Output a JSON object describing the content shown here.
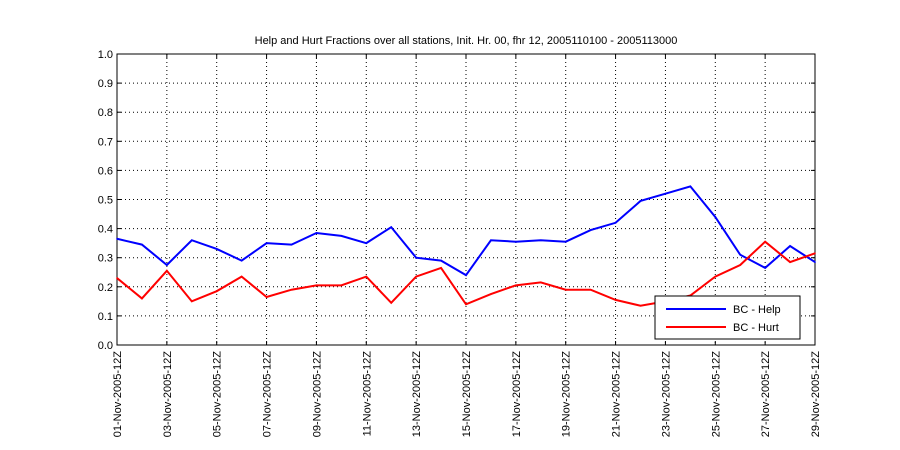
{
  "chart_data": {
    "type": "line",
    "title": "Help and Hurt Fractions over all stations, Init. Hr. 00, fhr 12, 2005110100 - 2005113000",
    "xlabel": "",
    "ylabel": "",
    "ylim": [
      0,
      1
    ],
    "yticks": [
      "0.0",
      "0.1",
      "0.2",
      "0.3",
      "0.4",
      "0.5",
      "0.6",
      "0.7",
      "0.8",
      "0.9",
      "1.0"
    ],
    "xlim": [
      1,
      29
    ],
    "x": [
      1,
      2,
      3,
      4,
      5,
      6,
      7,
      8,
      9,
      10,
      11,
      12,
      13,
      14,
      15,
      16,
      17,
      18,
      19,
      20,
      21,
      22,
      23,
      24,
      25,
      26,
      27,
      28,
      29
    ],
    "xtick_days": [
      1,
      3,
      5,
      7,
      9,
      11,
      13,
      15,
      17,
      19,
      21,
      23,
      25,
      27,
      29
    ],
    "xtick_labels": [
      "01-Nov-2005-12Z",
      "03-Nov-2005-12Z",
      "05-Nov-2005-12Z",
      "07-Nov-2005-12Z",
      "09-Nov-2005-12Z",
      "11-Nov-2005-12Z",
      "13-Nov-2005-12Z",
      "15-Nov-2005-12Z",
      "17-Nov-2005-12Z",
      "19-Nov-2005-12Z",
      "21-Nov-2005-12Z",
      "23-Nov-2005-12Z",
      "25-Nov-2005-12Z",
      "27-Nov-2005-12Z",
      "29-Nov-2005-12Z"
    ],
    "grid": true,
    "legend_position": "bottom-right",
    "series": [
      {
        "name": "BC - Help",
        "color": "#0000ff",
        "values": [
          0.365,
          0.345,
          0.275,
          0.36,
          0.33,
          0.29,
          0.35,
          0.345,
          0.385,
          0.375,
          0.35,
          0.405,
          0.3,
          0.29,
          0.24,
          0.36,
          0.355,
          0.36,
          0.355,
          0.395,
          0.42,
          0.495,
          0.52,
          0.545,
          0.44,
          0.31,
          0.265,
          0.34,
          0.285
        ]
      },
      {
        "name": "BC - Hurt",
        "color": "#ff0000",
        "values": [
          0.23,
          0.16,
          0.255,
          0.15,
          0.185,
          0.235,
          0.165,
          0.19,
          0.205,
          0.205,
          0.235,
          0.145,
          0.235,
          0.265,
          0.14,
          0.175,
          0.205,
          0.215,
          0.19,
          0.19,
          0.155,
          0.135,
          0.15,
          0.17,
          0.235,
          0.275,
          0.355,
          0.285,
          0.315
        ]
      }
    ]
  }
}
